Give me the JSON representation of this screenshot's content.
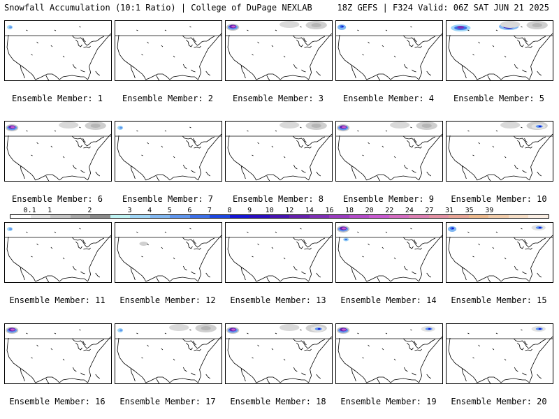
{
  "header": {
    "left_title": "Snowfall Accumulation (10:1 Ratio) | College of DuPage NEXLAB",
    "right_title": "18Z GEFS | F324 Valid: 06Z SAT JUN 21 2025"
  },
  "members": [
    {
      "label": "Ensemble Member: 1",
      "snow": [
        "pnw-light"
      ]
    },
    {
      "label": "Ensemble Member: 2",
      "snow": []
    },
    {
      "label": "Ensemble Member: 3",
      "snow": [
        "pnw-heavy",
        "canada-gray"
      ]
    },
    {
      "label": "Ensemble Member: 4",
      "snow": [
        "pnw-medium"
      ]
    },
    {
      "label": "Ensemble Member: 5",
      "snow": [
        "canada-heavy",
        "canada-gray"
      ]
    },
    {
      "label": "Ensemble Member: 6",
      "snow": [
        "pnw-heavy",
        "canada-gray"
      ]
    },
    {
      "label": "Ensemble Member: 7",
      "snow": [
        "pnw-light"
      ]
    },
    {
      "label": "Ensemble Member: 8",
      "snow": [
        "canada-gray"
      ]
    },
    {
      "label": "Ensemble Member: 9",
      "snow": [
        "pnw-heavy",
        "canada-gray"
      ]
    },
    {
      "label": "Ensemble Member: 10",
      "snow": [
        "canada-gray",
        "canada-light"
      ]
    },
    {
      "label": "Ensemble Member: 11",
      "snow": [
        "pnw-light"
      ]
    },
    {
      "label": "Ensemble Member: 12",
      "snow": [
        "rockies-gray"
      ]
    },
    {
      "label": "Ensemble Member: 13",
      "snow": []
    },
    {
      "label": "Ensemble Member: 14",
      "snow": [
        "pnw-heavy",
        "rockies-blue"
      ]
    },
    {
      "label": "Ensemble Member: 15",
      "snow": [
        "pnw-medium",
        "canada-light"
      ]
    },
    {
      "label": "Ensemble Member: 16",
      "snow": [
        "pnw-heavy"
      ]
    },
    {
      "label": "Ensemble Member: 17",
      "snow": [
        "pnw-light",
        "canada-gray"
      ]
    },
    {
      "label": "Ensemble Member: 18",
      "snow": [
        "pnw-heavy",
        "canada-gray",
        "canada-light"
      ]
    },
    {
      "label": "Ensemble Member: 19",
      "snow": [
        "pnw-heavy",
        "canada-light"
      ]
    },
    {
      "label": "Ensemble Member: 20",
      "snow": [
        "canada-light"
      ]
    }
  ],
  "color_scale": {
    "ticks": [
      "0.1",
      "1",
      "2",
      "3",
      "4",
      "5",
      "6",
      "7",
      "8",
      "9",
      "10",
      "12",
      "14",
      "16",
      "18",
      "20",
      "22",
      "24",
      "27",
      "31",
      "35",
      "39"
    ],
    "colors": [
      "#ffffff",
      "#e3e3e3",
      "#c6c6c6",
      "#a8a8a8",
      "#8a8a8a",
      "#bff3f3",
      "#9fd6f7",
      "#82b8f2",
      "#5f96ee",
      "#3c6fe8",
      "#1d47e0",
      "#1516d4",
      "#2a0fbf",
      "#4614b0",
      "#6420ac",
      "#7e2fb5",
      "#9a3cbf",
      "#b34bc9",
      "#c85ad0",
      "#d46cc1",
      "#dd7fb2",
      "#e391a3",
      "#e8a596",
      "#ecb98d",
      "#f1ccaa",
      "#f6dec6",
      "#fbefe4"
    ]
  }
}
